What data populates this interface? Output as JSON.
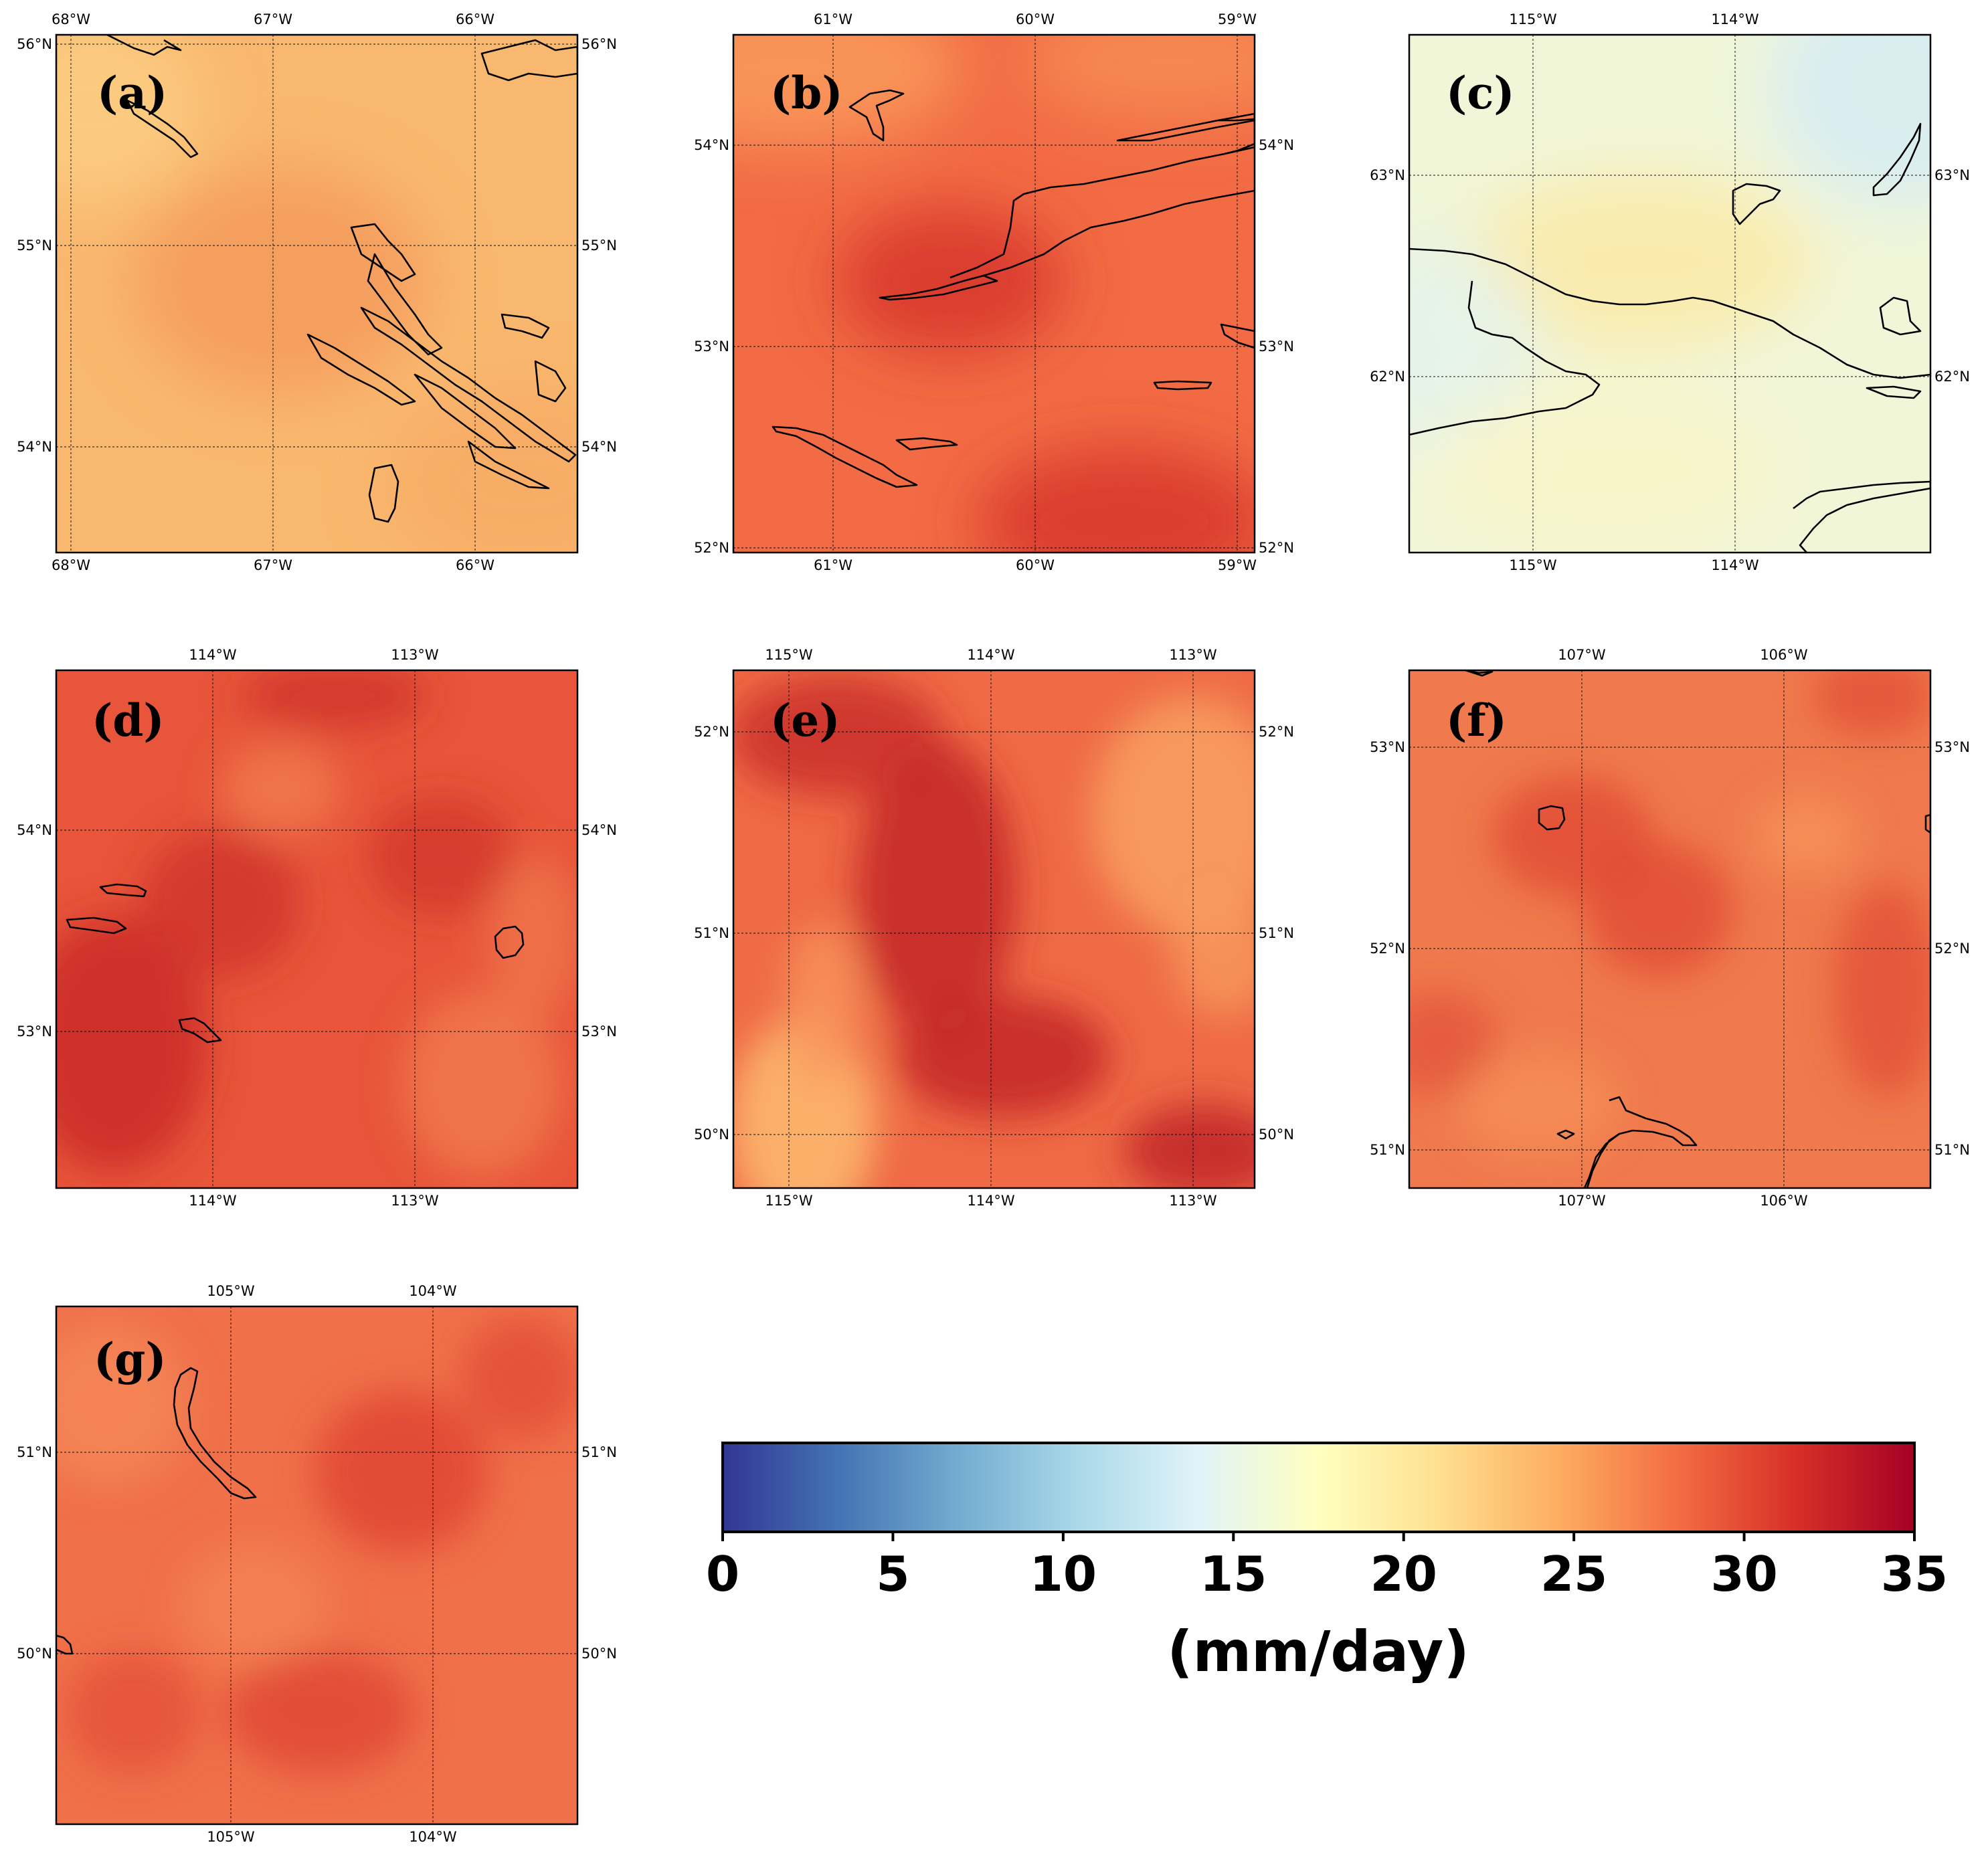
{
  "colorbar": {
    "ticks": [
      "0",
      "5",
      "10",
      "15",
      "20",
      "25",
      "30",
      "35"
    ],
    "unit": "(mm/day)",
    "range": [
      0,
      35
    ],
    "colors": [
      "#313695",
      "#4575b4",
      "#74add1",
      "#abd9e9",
      "#e0f3f8",
      "#ffffbf",
      "#fee090",
      "#fdae61",
      "#f46d43",
      "#d73027",
      "#a50026"
    ]
  },
  "panels": [
    {
      "label": "(a)",
      "lon_ticks": [
        "68°W",
        "67°W",
        "66°W"
      ],
      "lat_ticks": [
        "56°N",
        "55°N",
        "54°N"
      ],
      "base_color": "#f9b86f",
      "hotspot_color": "#f59a5c",
      "precip_mm_day": [
        22,
        25
      ]
    },
    {
      "label": "(b)",
      "lon_ticks": [
        "61°W",
        "60°W",
        "59°W"
      ],
      "lat_ticks": [
        "54°N",
        "53°N",
        "52°N"
      ],
      "base_color": "#f26b44",
      "hotspot_color": "#d8392d",
      "precip_mm_day": [
        25,
        31
      ]
    },
    {
      "label": "(c)",
      "lon_ticks": [
        "115°W",
        "114°W"
      ],
      "lat_ticks": [
        "63°N",
        "62°N"
      ],
      "base_color": "#f1f6d8",
      "hotspot_color": "#fbeaa8",
      "precip_mm_day": [
        14,
        19
      ]
    },
    {
      "label": "(d)",
      "lon_ticks": [
        "114°W",
        "113°W"
      ],
      "lat_ticks": [
        "54°N",
        "53°N"
      ],
      "base_color": "#e8553a",
      "hotspot_color": "#cc2f2a",
      "precip_mm_day": [
        27,
        32
      ]
    },
    {
      "label": "(e)",
      "lon_ticks": [
        "115°W",
        "114°W",
        "113°W"
      ],
      "lat_ticks": [
        "52°N",
        "51°N",
        "50°N"
      ],
      "base_color": "#ef6a45",
      "hotspot_color": "#c52a2a",
      "precip_mm_day": [
        23,
        33
      ]
    },
    {
      "label": "(f)",
      "lon_ticks": [
        "107°W",
        "106°W"
      ],
      "lat_ticks": [
        "53°N",
        "52°N",
        "51°N"
      ],
      "base_color": "#f07a4d",
      "hotspot_color": "#e04a35",
      "precip_mm_day": [
        26,
        30
      ]
    },
    {
      "label": "(g)",
      "lon_ticks": [
        "105°W",
        "104°W"
      ],
      "lat_ticks": [
        "51°N",
        "50°N"
      ],
      "base_color": "#f0704a",
      "hotspot_color": "#df4634",
      "precip_mm_day": [
        26,
        30
      ]
    }
  ]
}
